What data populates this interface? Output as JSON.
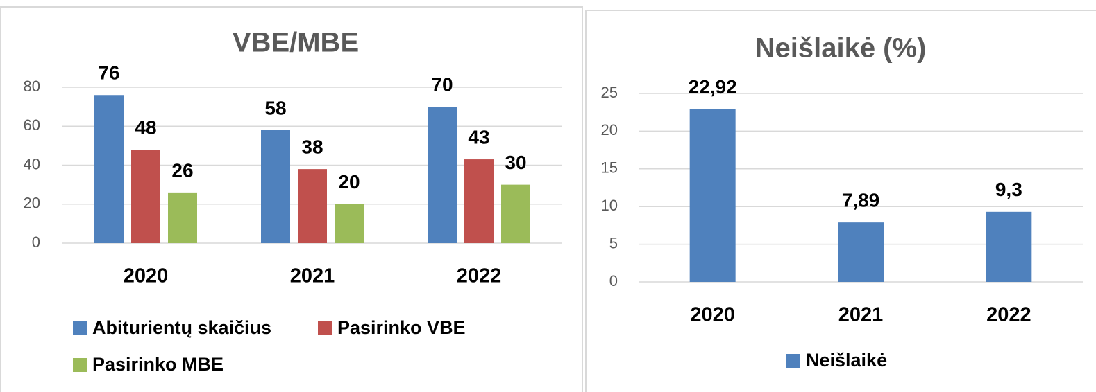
{
  "chart_data": [
    {
      "type": "bar",
      "title": "VBE/MBE",
      "categories": [
        "2020",
        "2021",
        "2022"
      ],
      "series": [
        {
          "name": "Abiturientų skaičius",
          "color": "#4f81bd",
          "values": [
            76,
            58,
            70
          ]
        },
        {
          "name": "Pasirinko VBE",
          "color": "#c0504d",
          "values": [
            48,
            38,
            43
          ]
        },
        {
          "name": "Pasirinko MBE",
          "color": "#9bbb59",
          "values": [
            26,
            20,
            30
          ]
        }
      ],
      "ylim": [
        0,
        80
      ],
      "yticks": [
        0,
        20,
        40,
        60,
        80
      ],
      "grid": true,
      "legend": "bottom"
    },
    {
      "type": "bar",
      "title": "Neišlaikė (%)",
      "categories": [
        "2020",
        "2021",
        "2022"
      ],
      "series": [
        {
          "name": "Neišlaikė",
          "color": "#4f81bd",
          "values": [
            22.92,
            7.89,
            9.3
          ],
          "value_labels": [
            "22,92",
            "7,89",
            "9,3"
          ]
        }
      ],
      "ylim": [
        0,
        25
      ],
      "yticks": [
        0,
        5,
        10,
        15,
        20,
        25
      ],
      "grid": true,
      "legend": "bottom"
    }
  ]
}
